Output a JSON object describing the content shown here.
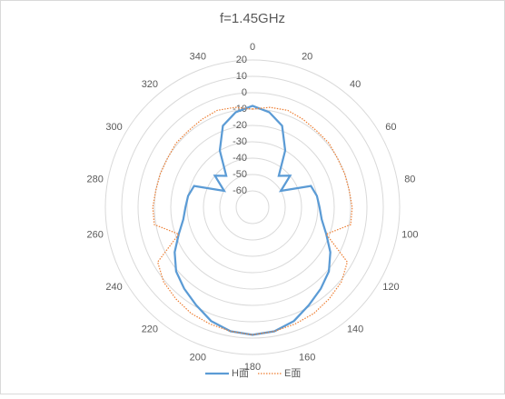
{
  "chart_data": {
    "type": "radar",
    "title": "f=1.45GHz",
    "categories": [
      0,
      null,
      20,
      null,
      40,
      null,
      60,
      null,
      80,
      null,
      100,
      null,
      120,
      null,
      140,
      null,
      160,
      null,
      180,
      null,
      200,
      null,
      220,
      null,
      240,
      null,
      260,
      null,
      280,
      null,
      300,
      null,
      320,
      null,
      340,
      null
    ],
    "series": [
      {
        "name": "H面",
        "color": "#5b9bd5",
        "values": [
          -8,
          -11,
          -17,
          -30,
          -45,
          -40,
          -50,
          -32,
          -30,
          -29,
          -27,
          -22,
          -15,
          -9,
          -5,
          -1,
          4,
          7,
          8,
          7,
          4,
          -1,
          -5,
          -9,
          -15,
          -22,
          -27,
          -29,
          -30,
          -32,
          -50,
          -40,
          -45,
          -30,
          -17,
          -11
        ]
      },
      {
        "name": "E面",
        "color": "#ed7d31",
        "values": [
          -10,
          -8,
          -7,
          -8,
          -9,
          -9,
          -10,
          -10,
          -10,
          -9,
          -9,
          -22,
          -3,
          1,
          3,
          5,
          6,
          7,
          8,
          7,
          6,
          5,
          3,
          1,
          -3,
          -22,
          -9,
          -9,
          -10,
          -10,
          -10,
          -9,
          -9,
          -8,
          -7,
          -8
        ]
      }
    ],
    "ylim": [
      -70,
      20
    ],
    "yticks": [
      -60,
      -50,
      -40,
      -30,
      -20,
      -10,
      0,
      10,
      20
    ],
    "legend": "bottom"
  }
}
